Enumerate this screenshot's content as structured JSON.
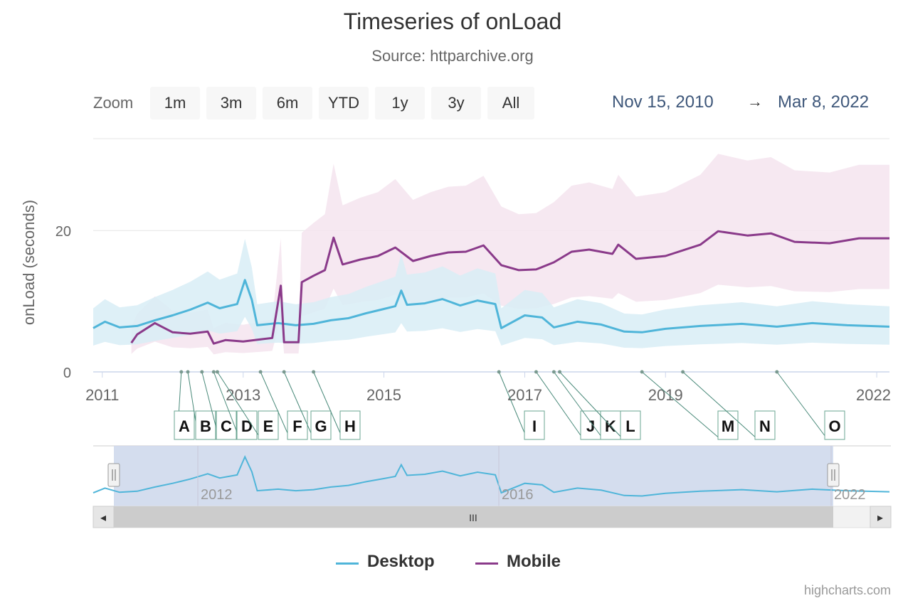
{
  "chart": {
    "title": "Timeseries of onLoad",
    "subtitle": "Source: httparchive.org",
    "credits": "highcharts.com"
  },
  "zoom": {
    "label": "Zoom",
    "buttons": [
      "1m",
      "3m",
      "6m",
      "YTD",
      "1y",
      "3y",
      "All"
    ]
  },
  "range": {
    "from": "Nov 15, 2010",
    "arrow": "→",
    "to": "Mar 8, 2022"
  },
  "navigator": {
    "labels": [
      "2012",
      "2016",
      "2022"
    ],
    "scroll_left_glyph": "◂",
    "scroll_right_glyph": "▸",
    "thumb_glyph": "III"
  },
  "colors": {
    "desktop": "#4fb5d9",
    "mobile": "#8a3a8a",
    "desktop_band": "#d8edf6",
    "mobile_band": "#f4e4ee",
    "navigator_fill": "#cfd9ec",
    "axis_text": "#666666"
  },
  "chart_data": {
    "type": "line",
    "ylabel": "onLoad (seconds)",
    "ylim": [
      0,
      33
    ],
    "yticks": [
      0,
      20
    ],
    "xrange": [
      "2010-11-15",
      "2022-03-08"
    ],
    "xticks": [
      "2011",
      "2013",
      "2015",
      "2017",
      "2019",
      "2022"
    ],
    "legend_position": "bottom-center",
    "grid": true,
    "series": [
      {
        "name": "Desktop",
        "points": [
          [
            "2010-11-15",
            6.2
          ],
          [
            "2011-01-15",
            7.1
          ],
          [
            "2011-04-01",
            6.3
          ],
          [
            "2011-07-01",
            6.5
          ],
          [
            "2011-10-01",
            7.3
          ],
          [
            "2012-01-01",
            8.0
          ],
          [
            "2012-04-01",
            8.8
          ],
          [
            "2012-07-01",
            9.8
          ],
          [
            "2012-09-01",
            9.0
          ],
          [
            "2012-12-01",
            9.6
          ],
          [
            "2013-01-10",
            13.0
          ],
          [
            "2013-02-15",
            10.2
          ],
          [
            "2013-03-15",
            6.6
          ],
          [
            "2013-07-01",
            6.9
          ],
          [
            "2013-10-01",
            6.6
          ],
          [
            "2014-01-01",
            6.8
          ],
          [
            "2014-04-01",
            7.3
          ],
          [
            "2014-07-01",
            7.6
          ],
          [
            "2014-10-01",
            8.3
          ],
          [
            "2015-01-01",
            8.9
          ],
          [
            "2015-03-01",
            9.3
          ],
          [
            "2015-04-01",
            11.5
          ],
          [
            "2015-05-01",
            9.5
          ],
          [
            "2015-08-01",
            9.7
          ],
          [
            "2015-11-01",
            10.3
          ],
          [
            "2016-02-01",
            9.4
          ],
          [
            "2016-05-01",
            10.1
          ],
          [
            "2016-08-01",
            9.6
          ],
          [
            "2016-09-01",
            6.2
          ],
          [
            "2017-01-01",
            8.0
          ],
          [
            "2017-04-01",
            7.7
          ],
          [
            "2017-06-01",
            6.3
          ],
          [
            "2017-10-01",
            7.1
          ],
          [
            "2018-02-01",
            6.7
          ],
          [
            "2018-06-01",
            5.7
          ],
          [
            "2018-09-01",
            5.6
          ],
          [
            "2019-01-01",
            6.1
          ],
          [
            "2019-07-01",
            6.5
          ],
          [
            "2020-02-01",
            6.8
          ],
          [
            "2020-08-01",
            6.4
          ],
          [
            "2021-02-01",
            6.9
          ],
          [
            "2021-08-01",
            6.6
          ],
          [
            "2022-03-08",
            6.4
          ]
        ]
      },
      {
        "name": "Mobile",
        "points": [
          [
            "2011-06-01",
            4.1
          ],
          [
            "2011-07-01",
            5.3
          ],
          [
            "2011-10-01",
            6.9
          ],
          [
            "2012-01-01",
            5.6
          ],
          [
            "2012-04-01",
            5.4
          ],
          [
            "2012-07-01",
            5.7
          ],
          [
            "2012-08-01",
            4.0
          ],
          [
            "2012-10-01",
            4.5
          ],
          [
            "2013-01-01",
            4.3
          ],
          [
            "2013-04-01",
            4.6
          ],
          [
            "2013-06-01",
            4.8
          ],
          [
            "2013-07-15",
            12.2
          ],
          [
            "2013-08-01",
            4.2
          ],
          [
            "2013-10-15",
            4.2
          ],
          [
            "2013-11-01",
            12.7
          ],
          [
            "2014-01-01",
            13.6
          ],
          [
            "2014-03-01",
            14.4
          ],
          [
            "2014-04-15",
            19.0
          ],
          [
            "2014-06-01",
            15.2
          ],
          [
            "2014-09-01",
            15.9
          ],
          [
            "2014-12-01",
            16.4
          ],
          [
            "2015-03-01",
            17.6
          ],
          [
            "2015-06-01",
            15.7
          ],
          [
            "2015-09-01",
            16.4
          ],
          [
            "2015-12-01",
            16.9
          ],
          [
            "2016-03-01",
            17.0
          ],
          [
            "2016-06-01",
            17.9
          ],
          [
            "2016-09-01",
            15.1
          ],
          [
            "2016-12-01",
            14.4
          ],
          [
            "2017-03-01",
            14.5
          ],
          [
            "2017-06-01",
            15.5
          ],
          [
            "2017-09-01",
            17.0
          ],
          [
            "2017-12-01",
            17.3
          ],
          [
            "2018-04-01",
            16.7
          ],
          [
            "2018-05-01",
            18.0
          ],
          [
            "2018-08-01",
            16.0
          ],
          [
            "2019-01-01",
            16.4
          ],
          [
            "2019-07-01",
            18.0
          ],
          [
            "2019-10-01",
            19.9
          ],
          [
            "2020-03-01",
            19.3
          ],
          [
            "2020-07-01",
            19.6
          ],
          [
            "2020-11-01",
            18.4
          ],
          [
            "2021-05-01",
            18.2
          ],
          [
            "2021-10-01",
            18.9
          ],
          [
            "2022-03-08",
            18.9
          ]
        ]
      }
    ],
    "flags": [
      {
        "label": "A",
        "date": "2012-02-15"
      },
      {
        "label": "B",
        "date": "2012-03-20"
      },
      {
        "label": "C",
        "date": "2012-06-01"
      },
      {
        "label": "D",
        "date": "2012-08-01"
      },
      {
        "label": "E",
        "date": "2012-08-20"
      },
      {
        "label": "F",
        "date": "2013-04-01"
      },
      {
        "label": "G",
        "date": "2013-08-01"
      },
      {
        "label": "H",
        "date": "2014-01-01"
      },
      {
        "label": "I",
        "date": "2016-08-20"
      },
      {
        "label": "J",
        "date": "2017-03-01"
      },
      {
        "label": "K",
        "date": "2017-06-01"
      },
      {
        "label": "L",
        "date": "2017-07-01"
      },
      {
        "label": "M",
        "date": "2018-09-01"
      },
      {
        "label": "N",
        "date": "2019-04-01"
      },
      {
        "label": "O",
        "date": "2020-08-01"
      }
    ]
  }
}
